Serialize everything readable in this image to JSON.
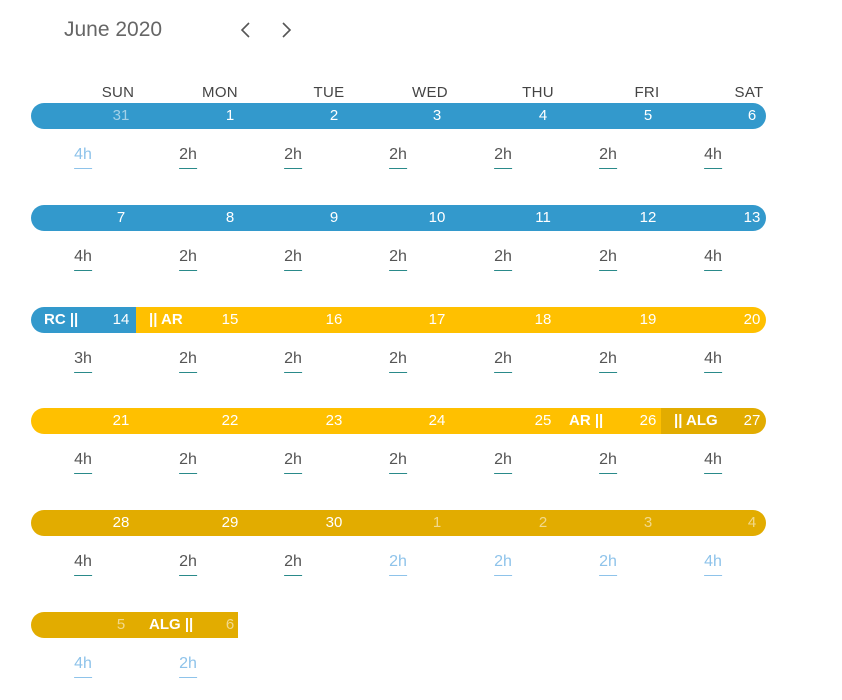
{
  "header": {
    "title": "June 2020"
  },
  "nav": {
    "prev_icon": "chevron-left-icon",
    "next_icon": "chevron-right-icon"
  },
  "days_of_week": [
    "SUN",
    "MON",
    "TUE",
    "WED",
    "THU",
    "FRI",
    "SAT"
  ],
  "colors": {
    "blue": "#3399cc",
    "yellow": "#ffc000",
    "gold": "#e2ac00"
  },
  "weeks": [
    {
      "days": [
        {
          "num": "31",
          "muted": true
        },
        {
          "num": "1"
        },
        {
          "num": "2"
        },
        {
          "num": "3"
        },
        {
          "num": "4"
        },
        {
          "num": "5"
        },
        {
          "num": "6"
        }
      ],
      "hours": [
        {
          "val": "4h",
          "muted": true
        },
        {
          "val": "2h"
        },
        {
          "val": "2h"
        },
        {
          "val": "2h"
        },
        {
          "val": "2h"
        },
        {
          "val": "2h"
        },
        {
          "val": "4h"
        }
      ],
      "segments": [
        {
          "color": "blue",
          "from_day": 0,
          "to_day": 7
        }
      ],
      "labels": []
    },
    {
      "days": [
        {
          "num": "7"
        },
        {
          "num": "8"
        },
        {
          "num": "9"
        },
        {
          "num": "10"
        },
        {
          "num": "11"
        },
        {
          "num": "12"
        },
        {
          "num": "13"
        }
      ],
      "hours": [
        {
          "val": "4h"
        },
        {
          "val": "2h"
        },
        {
          "val": "2h"
        },
        {
          "val": "2h"
        },
        {
          "val": "2h"
        },
        {
          "val": "2h"
        },
        {
          "val": "4h"
        }
      ],
      "segments": [
        {
          "color": "blue",
          "from_day": 0,
          "to_day": 7
        }
      ],
      "labels": []
    },
    {
      "days": [
        {
          "num": "14"
        },
        {
          "num": "15"
        },
        {
          "num": "16"
        },
        {
          "num": "17"
        },
        {
          "num": "18"
        },
        {
          "num": "19"
        },
        {
          "num": "20"
        }
      ],
      "hours": [
        {
          "val": "3h"
        },
        {
          "val": "2h"
        },
        {
          "val": "2h"
        },
        {
          "val": "2h"
        },
        {
          "val": "2h"
        },
        {
          "val": "2h"
        },
        {
          "val": "4h"
        }
      ],
      "segments": [
        {
          "color": "blue",
          "from_day": 0,
          "to_day": 1
        },
        {
          "color": "yellow",
          "from_day": 1,
          "to_day": 7
        }
      ],
      "labels": [
        {
          "text": "RC ||",
          "day": 0,
          "align": "start"
        },
        {
          "text": "|| AR",
          "day": 1,
          "align": "start"
        }
      ]
    },
    {
      "days": [
        {
          "num": "21"
        },
        {
          "num": "22"
        },
        {
          "num": "23"
        },
        {
          "num": "24"
        },
        {
          "num": "25"
        },
        {
          "num": "26"
        },
        {
          "num": "27"
        }
      ],
      "hours": [
        {
          "val": "4h"
        },
        {
          "val": "2h"
        },
        {
          "val": "2h"
        },
        {
          "val": "2h"
        },
        {
          "val": "2h"
        },
        {
          "val": "2h"
        },
        {
          "val": "4h"
        }
      ],
      "segments": [
        {
          "color": "yellow",
          "from_day": 0,
          "to_day": 6
        },
        {
          "color": "gold",
          "from_day": 6,
          "to_day": 7
        }
      ],
      "labels": [
        {
          "text": "AR ||",
          "day": 5,
          "align": "start"
        },
        {
          "text": "|| ALG",
          "day": 6,
          "align": "start"
        }
      ]
    },
    {
      "days": [
        {
          "num": "28"
        },
        {
          "num": "29"
        },
        {
          "num": "30"
        },
        {
          "num": "1",
          "muted": true
        },
        {
          "num": "2",
          "muted": true
        },
        {
          "num": "3",
          "muted": true
        },
        {
          "num": "4",
          "muted": true
        }
      ],
      "hours": [
        {
          "val": "4h"
        },
        {
          "val": "2h"
        },
        {
          "val": "2h"
        },
        {
          "val": "2h",
          "muted": true
        },
        {
          "val": "2h",
          "muted": true
        },
        {
          "val": "2h",
          "muted": true
        },
        {
          "val": "4h",
          "muted": true
        }
      ],
      "segments": [
        {
          "color": "gold",
          "from_day": 0,
          "to_day": 7
        }
      ],
      "labels": []
    },
    {
      "days": [
        {
          "num": "5",
          "muted": true
        },
        {
          "num": "6",
          "muted": true
        }
      ],
      "hours": [
        {
          "val": "4h",
          "muted": true
        },
        {
          "val": "2h",
          "muted": true
        }
      ],
      "segments": [
        {
          "color": "gold",
          "from_day": 0,
          "to_day": 2
        }
      ],
      "labels": [
        {
          "text": "ALG ||",
          "day": 1,
          "align": "start"
        }
      ],
      "partial": true
    }
  ]
}
